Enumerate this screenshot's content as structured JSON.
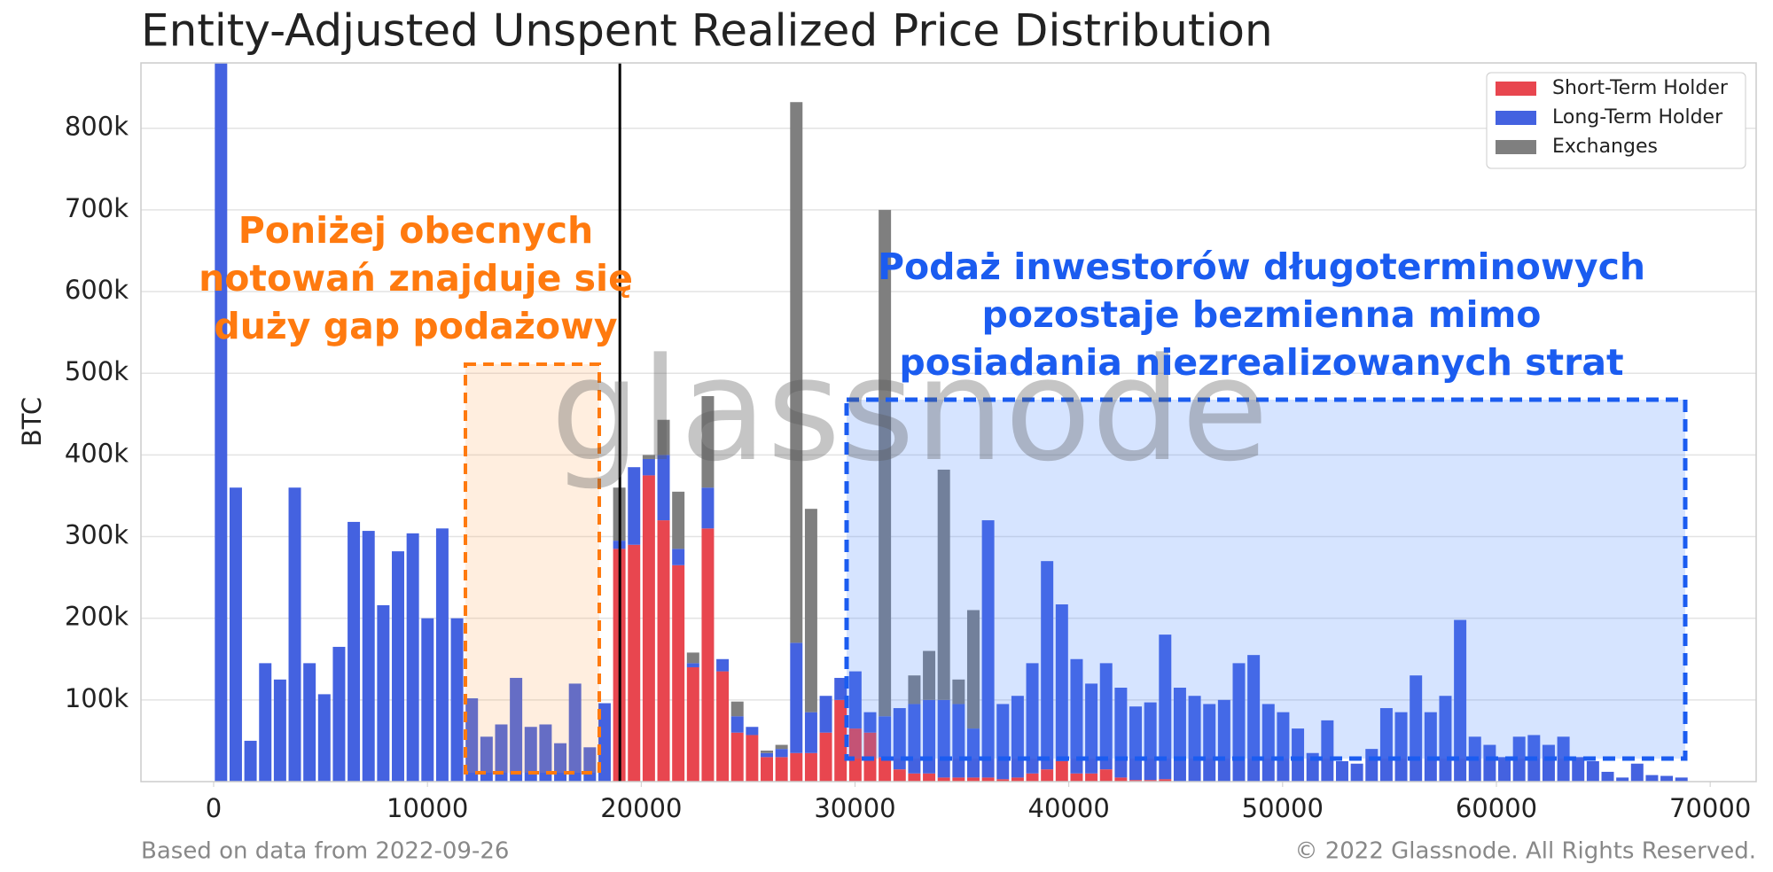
{
  "chart_data": {
    "type": "histogram",
    "title": "Entity-Adjusted Unspent Realized Price Distribution",
    "ylabel": "BTC",
    "footer_left": "Based on data from 2022-09-26",
    "footer_right": "© 2022 Glassnode. All Rights Reserved.",
    "watermark": "glassnode",
    "stacked": true,
    "grid": true,
    "legend": "upper right",
    "xlim": [
      -3400,
      72150
    ],
    "ylim": [
      0,
      880000
    ],
    "xticks": [
      0,
      10000,
      20000,
      30000,
      40000,
      50000,
      60000,
      70000
    ],
    "yticks": [
      {
        "value": 100000,
        "label": "100k"
      },
      {
        "value": 200000,
        "label": "200k"
      },
      {
        "value": 300000,
        "label": "300k"
      },
      {
        "value": 400000,
        "label": "400k"
      },
      {
        "value": 500000,
        "label": "500k"
      },
      {
        "value": 600000,
        "label": "600k"
      },
      {
        "value": 700000,
        "label": "700k"
      },
      {
        "value": 800000,
        "label": "800k"
      }
    ],
    "current_price": 19000,
    "bins": [
      0,
      690,
      1380,
      2070,
      2760,
      3450,
      4140,
      4830,
      5520,
      6210,
      6900,
      7590,
      8280,
      8970,
      9660,
      10350,
      11040,
      11730,
      12420,
      13110,
      13800,
      14490,
      15180,
      15870,
      16560,
      17250,
      17940,
      18630,
      19320,
      20010,
      20700,
      21390,
      22080,
      22770,
      23460,
      24150,
      24840,
      25530,
      26220,
      26910,
      27600,
      28290,
      28980,
      29670,
      30360,
      31050,
      31740,
      32430,
      33120,
      33810,
      34500,
      35190,
      35880,
      36570,
      37260,
      37950,
      38640,
      39330,
      40020,
      40710,
      41400,
      42090,
      42780,
      43470,
      44160,
      44850,
      45540,
      46230,
      46920,
      47610,
      48300,
      48990,
      49680,
      50370,
      51060,
      51750,
      52440,
      53130,
      53820,
      54510,
      55200,
      55890,
      56580,
      57270,
      57960,
      58650,
      59340,
      60030,
      60720,
      61410,
      62100,
      62790,
      63480,
      64170,
      64860,
      65550,
      66240,
      66930,
      67620,
      68310,
      69000
    ],
    "series": [
      {
        "name": "Short-Term Holder",
        "color": "#e8464f",
        "values": [
          0,
          0,
          0,
          0,
          0,
          0,
          0,
          0,
          0,
          0,
          0,
          0,
          0,
          0,
          0,
          0,
          0,
          0,
          0,
          0,
          0,
          0,
          0,
          0,
          0,
          0,
          0,
          285000,
          290000,
          375000,
          320000,
          265000,
          140000,
          310000,
          135000,
          60000,
          57000,
          30000,
          30000,
          35000,
          35000,
          60000,
          100000,
          65000,
          60000,
          30000,
          15000,
          10000,
          10000,
          5000,
          5000,
          5000,
          5000,
          3000,
          5000,
          10000,
          15000,
          25000,
          10000,
          10000,
          15000,
          5000,
          2000,
          2000,
          3000,
          0,
          0,
          0,
          0,
          0,
          0,
          0,
          0,
          0,
          0,
          0,
          0,
          0,
          0,
          0,
          0,
          0,
          0,
          0,
          0,
          0,
          0,
          0,
          0,
          0,
          0,
          0,
          0,
          0,
          0,
          0,
          0,
          0,
          0,
          0
        ]
      },
      {
        "name": "Long-Term Holder",
        "color": "#4462e0",
        "values": [
          900000,
          360000,
          50000,
          145000,
          125000,
          360000,
          145000,
          107000,
          165000,
          318000,
          307000,
          216000,
          282000,
          304000,
          200000,
          310000,
          200000,
          102000,
          55000,
          70000,
          127000,
          67000,
          70000,
          47000,
          120000,
          42000,
          96000,
          10000,
          95000,
          20000,
          80000,
          20000,
          5000,
          50000,
          15000,
          20000,
          10000,
          5000,
          10000,
          135000,
          50000,
          45000,
          27000,
          70000,
          25000,
          50000,
          75000,
          85000,
          90000,
          95000,
          90000,
          60000,
          315000,
          92000,
          100000,
          135000,
          255000,
          192000,
          140000,
          110000,
          130000,
          110000,
          90000,
          95000,
          177000,
          115000,
          105000,
          95000,
          100000,
          145000,
          155000,
          95000,
          85000,
          65000,
          35000,
          75000,
          25000,
          22000,
          40000,
          90000,
          85000,
          130000,
          85000,
          105000,
          198000,
          55000,
          45000,
          30000,
          55000,
          57000,
          45000,
          55000,
          30000,
          25000,
          12000,
          5000,
          22000,
          8000,
          7000,
          5000
        ]
      },
      {
        "name": "Exchanges",
        "color": "#7f7f7f",
        "values": [
          0,
          0,
          0,
          0,
          0,
          0,
          0,
          0,
          0,
          0,
          0,
          0,
          0,
          0,
          0,
          0,
          0,
          0,
          0,
          0,
          0,
          0,
          0,
          0,
          0,
          0,
          0,
          65000,
          0,
          5000,
          43000,
          70000,
          13000,
          112000,
          0,
          18000,
          0,
          3000,
          5000,
          662000,
          249000,
          0,
          0,
          0,
          0,
          620000,
          0,
          35000,
          60000,
          282000,
          30000,
          145000,
          0,
          0,
          0,
          0,
          0,
          0,
          0,
          0,
          0,
          0,
          0,
          0,
          0,
          0,
          0,
          0,
          0,
          0,
          0,
          0,
          0,
          0,
          0,
          0,
          0,
          0,
          0,
          0,
          0,
          0,
          0,
          0,
          0,
          0,
          0,
          0,
          0,
          0,
          0,
          0,
          0,
          0,
          0,
          0,
          0,
          0,
          0,
          0
        ]
      }
    ],
    "annotations": [
      {
        "lines": [
          "Poniżej obecnych",
          "notowań znajduje się",
          "duży gap podażowy"
        ],
        "color": "#ff7a0f"
      },
      {
        "lines": [
          "Podaż inwestorów długoterminowych",
          "pozostaje bezmienna mimo",
          "posiadania niezrealizowanych strat"
        ],
        "color": "#1b5cf0"
      }
    ]
  }
}
